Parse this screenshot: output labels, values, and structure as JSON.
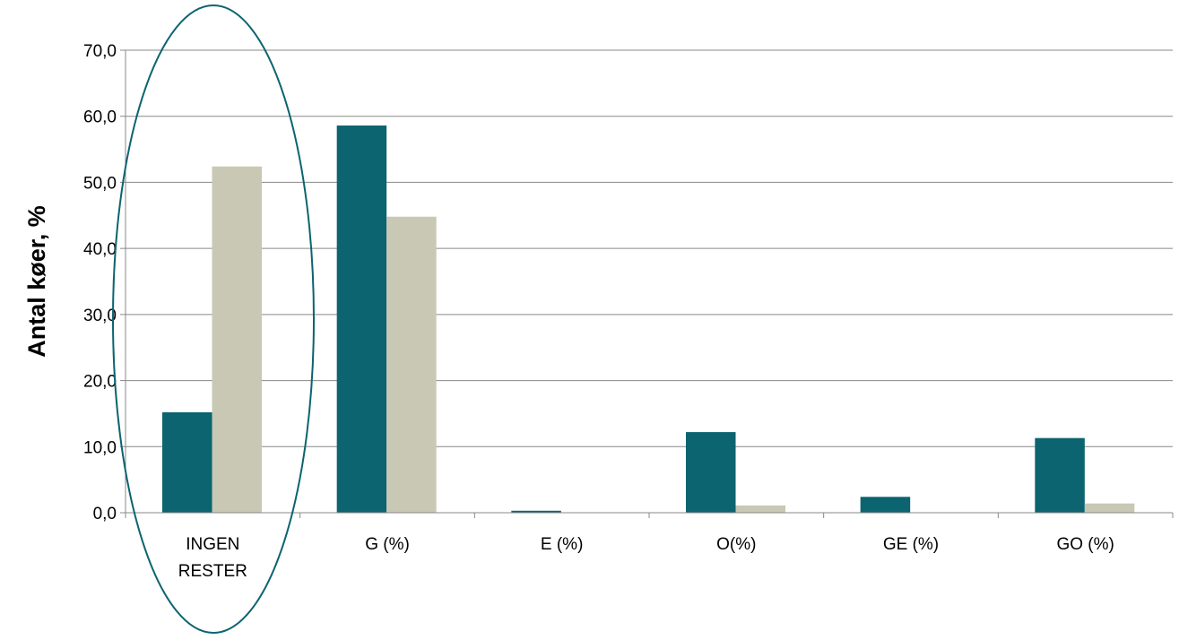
{
  "chart_data": {
    "type": "bar",
    "title": "",
    "xlabel": "",
    "ylabel": "Antal køer, %",
    "ylim": [
      0,
      70
    ],
    "yticks": [
      "0,0",
      "10,0",
      "20,0",
      "30,0",
      "40,0",
      "50,0",
      "60,0",
      "70,0"
    ],
    "ytick_values": [
      0,
      10,
      20,
      30,
      40,
      50,
      60,
      70
    ],
    "categories": [
      [
        "INGEN",
        "RESTER"
      ],
      [
        "G (%)"
      ],
      [
        "E (%)"
      ],
      [
        "O(%)"
      ],
      [
        "GE (%)"
      ],
      [
        "GO (%)"
      ]
    ],
    "series": [
      {
        "color": "#0b6470",
        "values": [
          15.2,
          58.6,
          0.3,
          12.2,
          2.4,
          11.3
        ]
      },
      {
        "color": "#c8c8b4",
        "values": [
          52.4,
          44.8,
          0.0,
          1.1,
          0.0,
          1.4
        ]
      }
    ],
    "grid": true,
    "legend": "none",
    "highlight": {
      "category_index": 0,
      "shape": "ellipse",
      "color": "#0b6470"
    }
  }
}
